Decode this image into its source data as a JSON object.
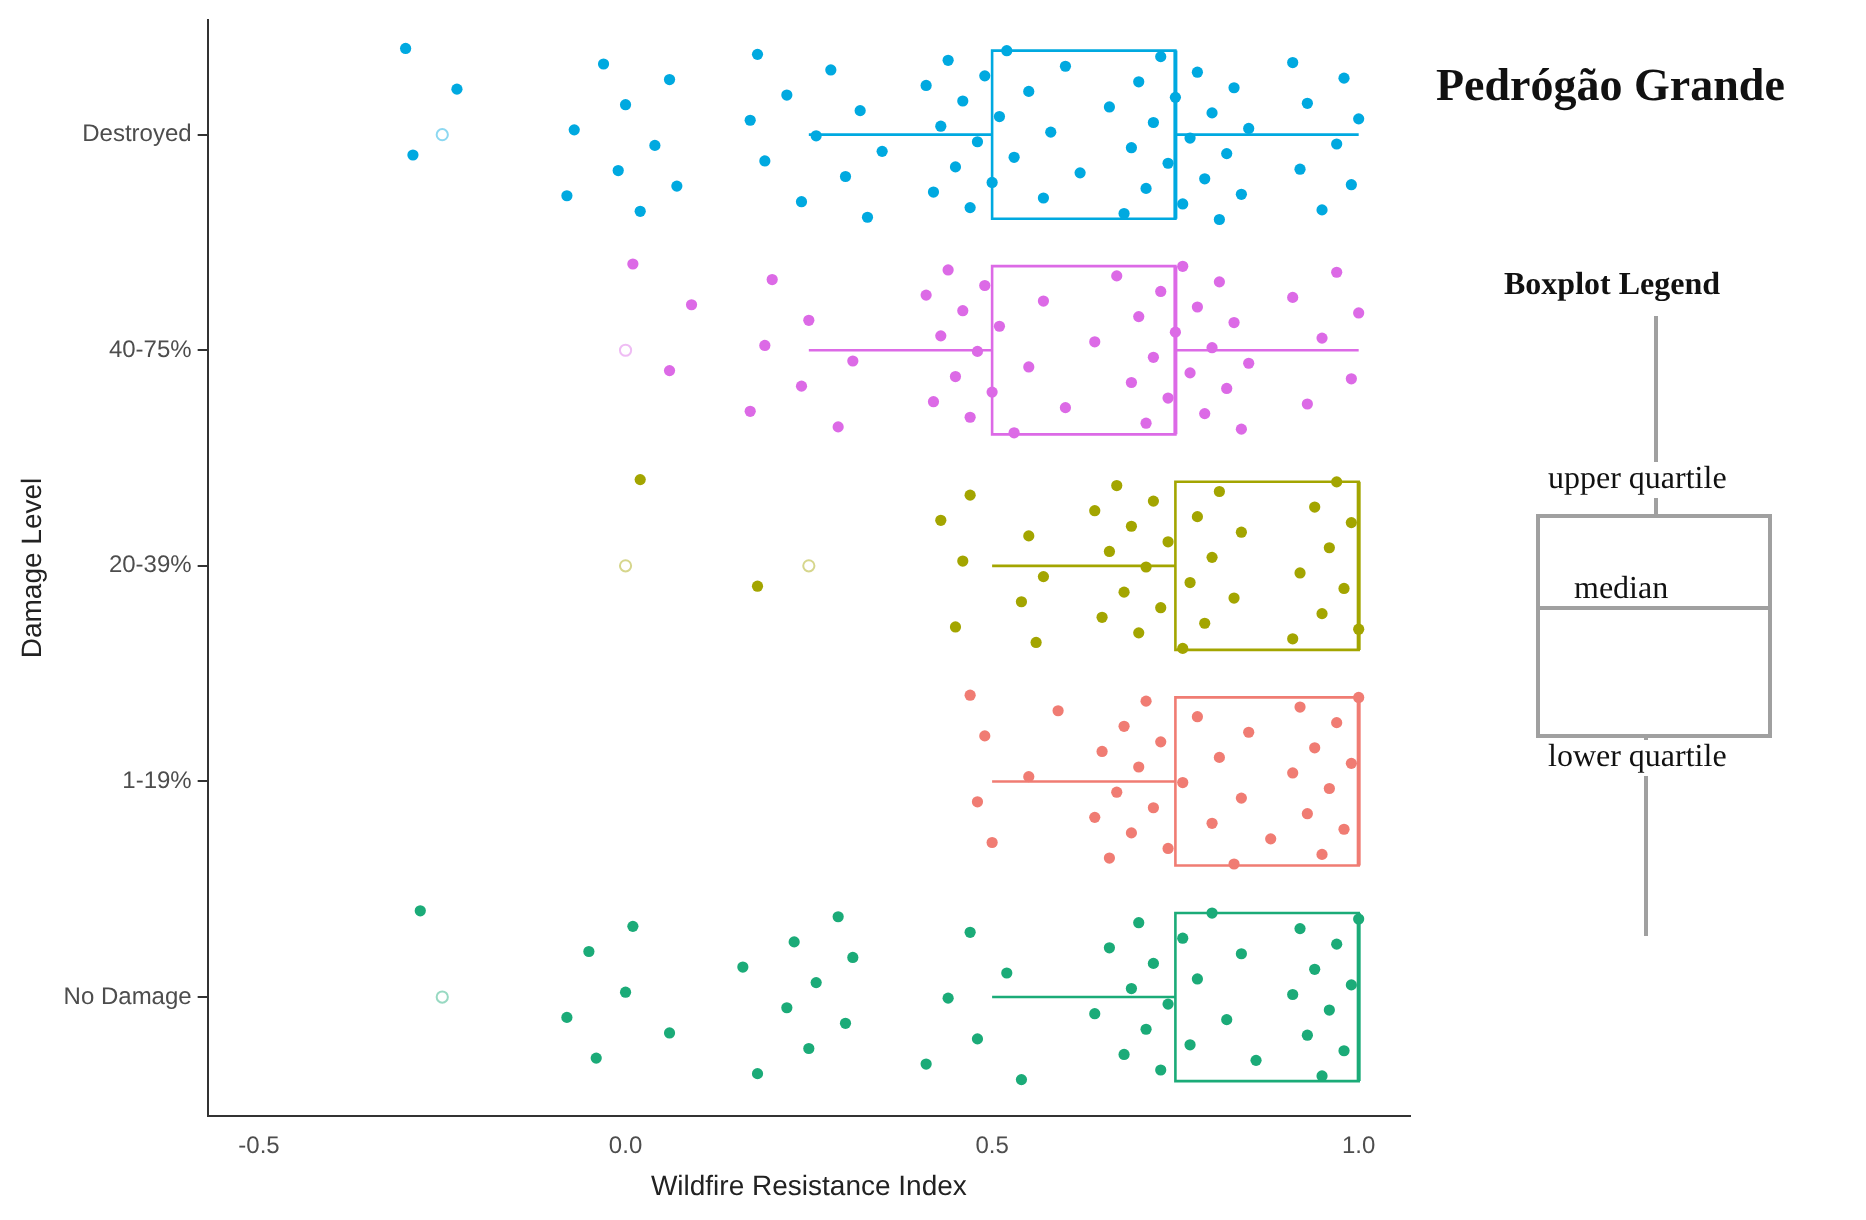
{
  "chart_data": {
    "type": "box",
    "orientation": "horizontal",
    "title": "Pedrógão Grande",
    "xlabel": "Wildfire Resistance Index",
    "ylabel": "Damage Level",
    "categories": [
      "Destroyed",
      "40-75%",
      "20-39%",
      "1-19%",
      "No Damage"
    ],
    "xlim": [
      -0.57,
      1.07
    ],
    "xticks": [
      -0.5,
      {
        "value": 0,
        "label": "0.0"
      },
      0.5,
      {
        "value": 1,
        "label": "1.0"
      }
    ],
    "grid": false,
    "legend": false,
    "annotations": [
      "Boxplot Legend",
      "upper quartile",
      "median",
      "lower quartile"
    ],
    "series": [
      {
        "colors": [
          "#00a9e0",
          "#dc6ae6",
          "#a3a500",
          "#f07c73",
          "#1bab78"
        ],
        "boxes": [
          {
            "low": 0.25,
            "q1": 0.5,
            "median": 0.75,
            "q3": 0.75,
            "high": 1.0,
            "outliers": [
              -0.25
            ]
          },
          {
            "low": 0.25,
            "q1": 0.5,
            "median": 0.75,
            "q3": 0.75,
            "high": 1.0,
            "outliers": [
              0.0
            ]
          },
          {
            "low": 0.5,
            "q1": 0.75,
            "median": 1.0,
            "q3": 1.0,
            "high": 1.0,
            "outliers": [
              0.0,
              0.25
            ]
          },
          {
            "low": 0.5,
            "q1": 0.75,
            "median": 1.0,
            "q3": 1.0,
            "high": 1.0
          },
          {
            "low": 0.5,
            "q1": 0.75,
            "median": 1.0,
            "q3": 1.0,
            "high": 1.0,
            "outliers": [
              -0.25
            ]
          }
        ]
      },
      {
        "type": "scatter",
        "color": "#00a9e0",
        "x": [
          "Destroyed",
          "Destroyed",
          "Destroyed",
          "Destroyed",
          "Destroyed",
          "Destroyed",
          "Destroyed",
          "Destroyed",
          "Destroyed",
          "Destroyed",
          "Destroyed",
          "Destroyed",
          "Destroyed",
          "Destroyed",
          "Destroyed",
          "Destroyed",
          "Destroyed",
          "Destroyed",
          "Destroyed",
          "Destroyed",
          "Destroyed",
          "Destroyed",
          "Destroyed",
          "Destroyed",
          "Destroyed",
          "Destroyed",
          "Destroyed",
          "Destroyed",
          "Destroyed",
          "Destroyed",
          "Destroyed",
          "Destroyed",
          "Destroyed",
          "Destroyed",
          "Destroyed",
          "Destroyed",
          "Destroyed",
          "Destroyed",
          "Destroyed",
          "Destroyed",
          "Destroyed",
          "Destroyed",
          "Destroyed",
          "Destroyed",
          "Destroyed",
          "Destroyed",
          "Destroyed",
          "Destroyed",
          "Destroyed",
          "Destroyed",
          "Destroyed",
          "Destroyed",
          "Destroyed",
          "Destroyed",
          "Destroyed",
          "Destroyed",
          "Destroyed",
          "Destroyed",
          "Destroyed",
          "Destroyed",
          "Destroyed",
          "Destroyed",
          "Destroyed",
          "Destroyed",
          "Destroyed",
          "Destroyed",
          "Destroyed",
          "Destroyed"
        ],
        "values": [
          -0.3,
          -0.29,
          -0.23,
          -0.08,
          -0.07,
          -0.03,
          -0.01,
          0.0,
          0.02,
          0.04,
          0.06,
          0.07,
          0.17,
          0.18,
          0.19,
          0.22,
          0.24,
          0.26,
          0.28,
          0.3,
          0.32,
          0.33,
          0.35,
          0.41,
          0.42,
          0.43,
          0.44,
          0.45,
          0.46,
          0.47,
          0.48,
          0.49,
          0.5,
          0.51,
          0.52,
          0.53,
          0.55,
          0.57,
          0.58,
          0.6,
          0.62,
          0.66,
          0.68,
          0.69,
          0.7,
          0.71,
          0.72,
          0.73,
          0.74,
          0.75,
          0.76,
          0.77,
          0.78,
          0.79,
          0.8,
          0.81,
          0.82,
          0.83,
          0.84,
          0.85,
          0.91,
          0.92,
          0.93,
          0.95,
          0.97,
          0.98,
          0.99,
          1.0
        ]
      },
      {
        "type": "scatter",
        "color": "#dc6ae6",
        "x": [
          "40-75%",
          "40-75%",
          "40-75%",
          "40-75%",
          "40-75%",
          "40-75%",
          "40-75%",
          "40-75%",
          "40-75%",
          "40-75%",
          "40-75%",
          "40-75%",
          "40-75%",
          "40-75%",
          "40-75%",
          "40-75%",
          "40-75%",
          "40-75%",
          "40-75%",
          "40-75%",
          "40-75%",
          "40-75%",
          "40-75%",
          "40-75%",
          "40-75%",
          "40-75%",
          "40-75%",
          "40-75%",
          "40-75%",
          "40-75%",
          "40-75%",
          "40-75%",
          "40-75%",
          "40-75%",
          "40-75%",
          "40-75%",
          "40-75%",
          "40-75%",
          "40-75%",
          "40-75%",
          "40-75%",
          "40-75%",
          "40-75%",
          "40-75%",
          "40-75%",
          "40-75%",
          "40-75%",
          "40-75%",
          "40-75%",
          "40-75%"
        ],
        "values": [
          0.01,
          0.06,
          0.09,
          0.17,
          0.19,
          0.2,
          0.24,
          0.25,
          0.29,
          0.31,
          0.41,
          0.42,
          0.43,
          0.44,
          0.45,
          0.46,
          0.47,
          0.48,
          0.49,
          0.5,
          0.51,
          0.53,
          0.55,
          0.57,
          0.6,
          0.64,
          0.67,
          0.69,
          0.7,
          0.71,
          0.72,
          0.73,
          0.74,
          0.75,
          0.76,
          0.77,
          0.78,
          0.79,
          0.8,
          0.81,
          0.82,
          0.83,
          0.84,
          0.85,
          0.91,
          0.93,
          0.95,
          0.97,
          0.99,
          1.0
        ]
      },
      {
        "type": "scatter",
        "color": "#a3a500",
        "x": [
          "20-39%",
          "20-39%",
          "20-39%",
          "20-39%",
          "20-39%",
          "20-39%",
          "20-39%",
          "20-39%",
          "20-39%",
          "20-39%",
          "20-39%",
          "20-39%",
          "20-39%",
          "20-39%",
          "20-39%",
          "20-39%",
          "20-39%",
          "20-39%",
          "20-39%",
          "20-39%",
          "20-39%",
          "20-39%",
          "20-39%",
          "20-39%",
          "20-39%",
          "20-39%",
          "20-39%",
          "20-39%",
          "20-39%",
          "20-39%",
          "20-39%",
          "20-39%",
          "20-39%",
          "20-39%",
          "20-39%",
          "20-39%",
          "20-39%",
          "20-39%"
        ],
        "values": [
          0.02,
          0.18,
          0.43,
          0.45,
          0.46,
          0.47,
          0.54,
          0.55,
          0.56,
          0.57,
          0.64,
          0.65,
          0.66,
          0.67,
          0.68,
          0.69,
          0.7,
          0.71,
          0.72,
          0.73,
          0.74,
          0.76,
          0.77,
          0.78,
          0.79,
          0.8,
          0.81,
          0.83,
          0.84,
          0.91,
          0.92,
          0.94,
          0.95,
          0.96,
          0.97,
          0.98,
          0.99,
          1.0
        ]
      },
      {
        "type": "scatter",
        "color": "#f07c73",
        "x": [
          "1-19%",
          "1-19%",
          "1-19%",
          "1-19%",
          "1-19%",
          "1-19%",
          "1-19%",
          "1-19%",
          "1-19%",
          "1-19%",
          "1-19%",
          "1-19%",
          "1-19%",
          "1-19%",
          "1-19%",
          "1-19%",
          "1-19%",
          "1-19%",
          "1-19%",
          "1-19%",
          "1-19%",
          "1-19%",
          "1-19%",
          "1-19%",
          "1-19%",
          "1-19%",
          "1-19%",
          "1-19%",
          "1-19%",
          "1-19%",
          "1-19%",
          "1-19%",
          "1-19%",
          "1-19%",
          "1-19%"
        ],
        "values": [
          0.47,
          0.48,
          0.49,
          0.5,
          0.55,
          0.59,
          0.64,
          0.65,
          0.66,
          0.67,
          0.68,
          0.69,
          0.7,
          0.71,
          0.72,
          0.73,
          0.74,
          0.76,
          0.78,
          0.8,
          0.81,
          0.83,
          0.84,
          0.85,
          0.88,
          0.91,
          0.92,
          0.93,
          0.94,
          0.95,
          0.96,
          0.97,
          0.98,
          0.99,
          1.0
        ]
      },
      {
        "type": "scatter",
        "color": "#1bab78",
        "x": [
          "No Damage",
          "No Damage",
          "No Damage",
          "No Damage",
          "No Damage",
          "No Damage",
          "No Damage",
          "No Damage",
          "No Damage",
          "No Damage",
          "No Damage",
          "No Damage",
          "No Damage",
          "No Damage",
          "No Damage",
          "No Damage",
          "No Damage",
          "No Damage",
          "No Damage",
          "No Damage",
          "No Damage",
          "No Damage",
          "No Damage",
          "No Damage",
          "No Damage",
          "No Damage",
          "No Damage",
          "No Damage",
          "No Damage",
          "No Damage",
          "No Damage",
          "No Damage",
          "No Damage",
          "No Damage",
          "No Damage",
          "No Damage",
          "No Damage",
          "No Damage",
          "No Damage",
          "No Damage",
          "No Damage",
          "No Damage",
          "No Damage",
          "No Damage",
          "No Damage",
          "No Damage",
          "No Damage",
          "No Damage"
        ],
        "values": [
          -0.28,
          -0.08,
          -0.05,
          -0.04,
          0.0,
          0.01,
          0.06,
          0.16,
          0.18,
          0.22,
          0.23,
          0.25,
          0.26,
          0.29,
          0.3,
          0.31,
          0.41,
          0.44,
          0.47,
          0.48,
          0.52,
          0.54,
          0.64,
          0.66,
          0.68,
          0.69,
          0.7,
          0.71,
          0.72,
          0.73,
          0.74,
          0.76,
          0.77,
          0.78,
          0.8,
          0.82,
          0.84,
          0.86,
          0.91,
          0.92,
          0.93,
          0.94,
          0.95,
          0.96,
          0.97,
          0.98,
          0.99,
          1.0
        ]
      }
    ]
  }
}
